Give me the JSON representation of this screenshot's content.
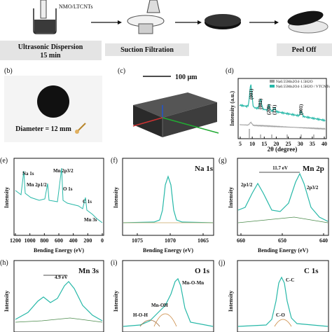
{
  "process": {
    "step1_label": "Ultrasonic Dispersion",
    "step1_sub": "15 min",
    "step2_label": "Suction Filtration",
    "step3_label": "Peel Off",
    "material": "NMO/LTCNTs"
  },
  "panel_b": {
    "letter": "(b)",
    "diameter": "Diameter = 12 mm"
  },
  "panel_c": {
    "letter": "(c)",
    "scale": "100 μm"
  },
  "panel_d": {
    "letter": "(d)",
    "legend": [
      "Na0.55Mn2O4·1.5H2O",
      "Na0.55Mn2O4·1.5H2O / VTCNTs"
    ],
    "peaks": [
      "(001)",
      "(002)",
      "(200)",
      "(111)",
      "(001)"
    ],
    "xlabel": "2θ (degree)",
    "ylabel": "Intensity (a.u.)",
    "xticks": [
      "5",
      "10",
      "15",
      "20",
      "25",
      "30",
      "35",
      "40"
    ],
    "colors": {
      "composite": "#27b8a8",
      "pristine": "#9a9a9a"
    }
  },
  "panel_e": {
    "letter": "(e)",
    "labels": [
      "Na 1s",
      "Mn 2p1/2",
      "Mn 2p3/2",
      "O 1s",
      "C 1s",
      "Mn 3s"
    ],
    "xlabel": "Bending Energy (eV)",
    "ylabel": "Intensity",
    "xticks": [
      "1200",
      "1000",
      "800",
      "600",
      "400",
      "200",
      "0"
    ]
  },
  "panel_f": {
    "letter": "(f)",
    "title": "Na 1s",
    "xlabel": "Bending Energy (eV)",
    "ylabel": "Intensity",
    "xticks": [
      "1075",
      "1070",
      "1065"
    ]
  },
  "panel_g": {
    "letter": "(g)",
    "title": "Mn 2p",
    "split": "11.7 eV",
    "peak_left": "2p1/2",
    "peak_right": "2p3/2",
    "xlabel": "Bending Energy (eV)",
    "ylabel": "Intensity",
    "xticks": [
      "660",
      "650",
      "640"
    ]
  },
  "panel_h": {
    "letter": "(h)",
    "title": "Mn 3s",
    "split": "4.9 eV",
    "ylabel": "Intensity"
  },
  "panel_i": {
    "letter": "(i)",
    "title": "O 1s",
    "peaks": [
      "H-O-H",
      "Mn-OH",
      "Mn-O-Mn"
    ],
    "ylabel": "Intensity"
  },
  "panel_j": {
    "letter": "(j)",
    "title": "C 1s",
    "peaks": [
      "C-C",
      "C-O"
    ],
    "ylabel": "Intensity"
  }
}
